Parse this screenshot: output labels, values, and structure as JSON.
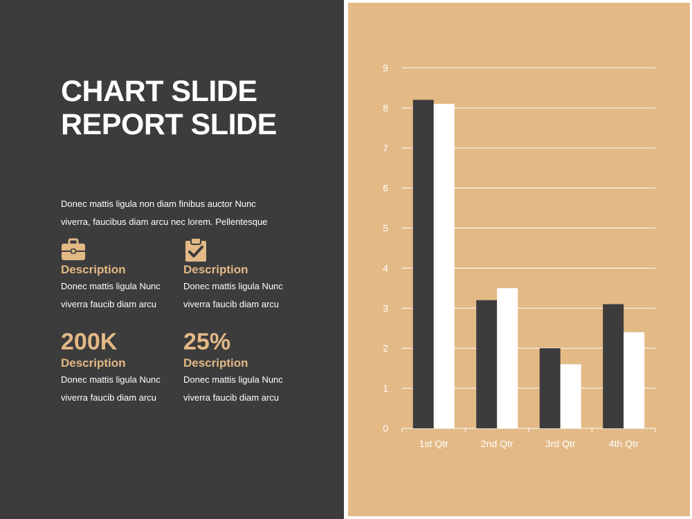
{
  "slide": {
    "title_line1": "CHART SLIDE",
    "title_line2": "REPORT SLIDE",
    "intro_line1": "Donec mattis ligula non diam finibus auctor Nunc",
    "intro_line2": "viverra, faucibus diam arcu nec lorem. Pellentesque"
  },
  "blocks": [
    {
      "icon": "briefcase-icon",
      "label": "Description",
      "line1": "Donec mattis ligula Nunc",
      "line2": "viverra faucib diam arcu"
    },
    {
      "icon": "clipboard-check-icon",
      "label": "Description",
      "line1": "Donec mattis ligula Nunc",
      "line2": "viverra faucib diam arcu"
    },
    {
      "stat": "200K",
      "label": "Description",
      "line1": "Donec mattis ligula Nunc",
      "line2": "viverra faucib diam arcu"
    },
    {
      "stat": "25%",
      "label": "Description",
      "line1": "Donec mattis ligula Nunc",
      "line2": "viverra faucib diam arcu"
    }
  ],
  "colors": {
    "dark_panel": "#3d3c3c",
    "accent": "#e3b986",
    "text_light": "#ffffff",
    "series_dark": "#3d3c3c",
    "series_light": "#ffffff"
  },
  "chart_data": {
    "type": "bar",
    "categories": [
      "1st Qtr",
      "2nd Qtr",
      "3rd Qtr",
      "4th Qtr"
    ],
    "series": [
      {
        "values": [
          8.2,
          3.2,
          2.0,
          3.1
        ],
        "color": "#3d3c3c"
      },
      {
        "values": [
          8.1,
          3.5,
          1.6,
          2.4
        ],
        "color": "#ffffff"
      }
    ],
    "title": "",
    "xlabel": "",
    "ylabel": "",
    "ylim": [
      0,
      9
    ],
    "yticks": [
      "0",
      "1",
      "2",
      "3",
      "4",
      "5",
      "6",
      "7",
      "8",
      "9"
    ],
    "grid": true,
    "legend": "none"
  }
}
